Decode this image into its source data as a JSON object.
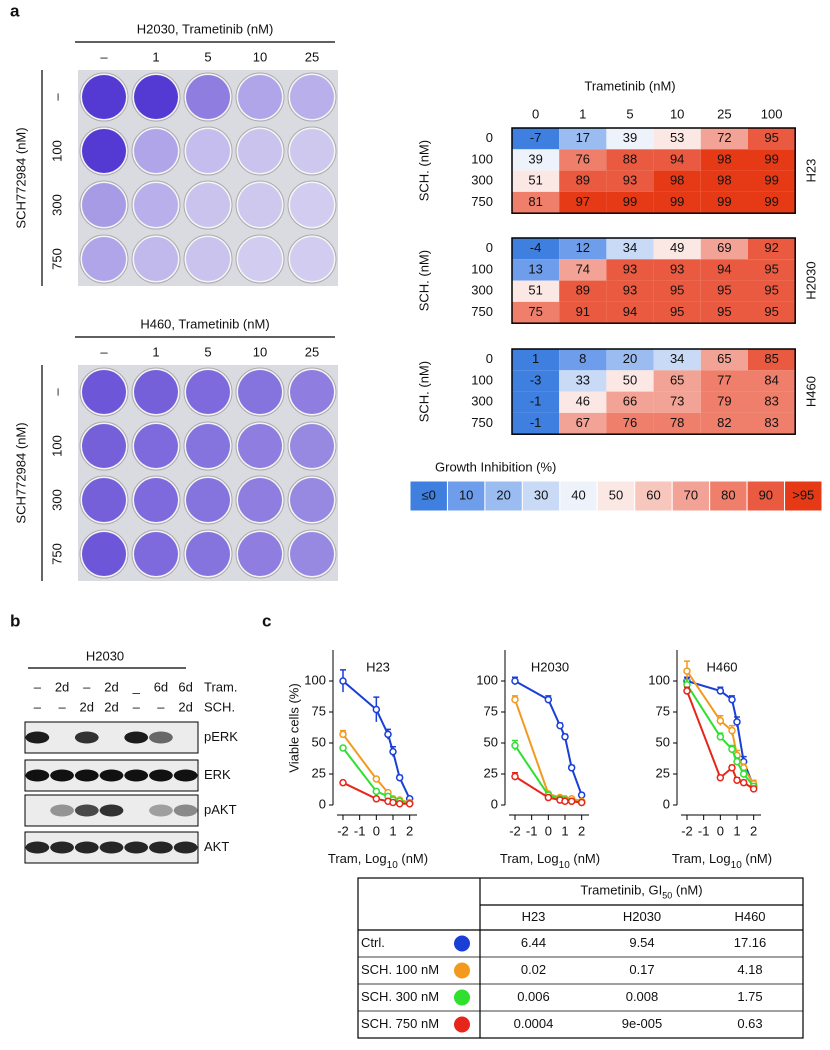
{
  "panel_labels": [
    "a",
    "b",
    "c"
  ],
  "plates": [
    {
      "title": "H2030, Trametinib (nM)",
      "columns": [
        "–",
        "1",
        "5",
        "10",
        "25"
      ],
      "rows": [
        "–",
        "100",
        "300",
        "750"
      ],
      "row_axis": "SCH772984 (nM)"
    },
    {
      "title": "H460, Trametinib (nM)",
      "columns": [
        "–",
        "1",
        "5",
        "10",
        "25"
      ],
      "rows": [
        "–",
        "100",
        "300",
        "750"
      ],
      "row_axis": "SCH772984 (nM)"
    }
  ],
  "heatmaps": {
    "title": "Trametinib (nM)",
    "columns": [
      "0",
      "1",
      "5",
      "10",
      "25",
      "100"
    ],
    "rows": [
      "0",
      "100",
      "300",
      "750"
    ],
    "row_axis": "SCH. (nM)",
    "panels": [
      {
        "name": "H23",
        "values": [
          [
            -7,
            17,
            39,
            53,
            72,
            95
          ],
          [
            39,
            76,
            88,
            94,
            98,
            99
          ],
          [
            51,
            89,
            93,
            98,
            98,
            99
          ],
          [
            81,
            97,
            99,
            99,
            99,
            99
          ]
        ]
      },
      {
        "name": "H2030",
        "values": [
          [
            -4,
            12,
            34,
            49,
            69,
            92
          ],
          [
            13,
            74,
            93,
            93,
            94,
            95
          ],
          [
            51,
            89,
            93,
            95,
            95,
            95
          ],
          [
            75,
            91,
            94,
            95,
            95,
            95
          ]
        ]
      },
      {
        "name": "H460",
        "values": [
          [
            1,
            8,
            20,
            34,
            65,
            85
          ],
          [
            -3,
            33,
            50,
            65,
            77,
            84
          ],
          [
            -1,
            46,
            66,
            73,
            79,
            83
          ],
          [
            -1,
            67,
            76,
            78,
            82,
            83
          ]
        ]
      }
    ],
    "legend": {
      "title": "Growth Inhibition (%)",
      "labels": [
        "≤0",
        "10",
        "20",
        "30",
        "40",
        "50",
        "60",
        "70",
        "80",
        "90",
        ">95"
      ],
      "colors": [
        "#3f7fe0",
        "#6d9deb",
        "#9bbcf1",
        "#c8daf6",
        "#eef3fb",
        "#fbe8e4",
        "#f7c6bd",
        "#f3a395",
        "#ef7e6b",
        "#ea5a40",
        "#e63a17"
      ]
    }
  },
  "blot": {
    "title": "H2030",
    "conditions": [
      {
        "name": "Tram.",
        "lanes": [
          "–",
          "2d",
          "–",
          "2d",
          "_",
          "6d",
          "6d"
        ]
      },
      {
        "name": "SCH.",
        "lanes": [
          "–",
          "–",
          "2d",
          "2d",
          "–",
          "–",
          "2d"
        ]
      }
    ],
    "bands": [
      "pERK",
      "ERK",
      "pAKT",
      "AKT"
    ]
  },
  "chart_data": [
    {
      "type": "line",
      "title": "H23",
      "ylabel": "Viable cells (%)",
      "xlabel": [
        "Tram, Log",
        "10",
        " (nM)"
      ],
      "x": [
        -2,
        0,
        0.7,
        1,
        1.4,
        2
      ],
      "xlim": [
        -2.6,
        2.2
      ],
      "xticks": [
        -2,
        -1,
        0,
        1,
        2
      ],
      "ylim": [
        0,
        125
      ],
      "yticks": [
        0,
        25,
        50,
        75,
        100
      ],
      "series": [
        {
          "name": "Ctrl.",
          "color": "#1a3fd6",
          "values": [
            100,
            77,
            57,
            43,
            22,
            5
          ],
          "errors": [
            9,
            10,
            4,
            4,
            2,
            1
          ]
        },
        {
          "name": "SCH. 100 nM",
          "color": "#f39a1e",
          "values": [
            57,
            21,
            10,
            5,
            4,
            2
          ],
          "errors": [
            3,
            1,
            1,
            1,
            1,
            1
          ]
        },
        {
          "name": "SCH. 300 nM",
          "color": "#2fe02f",
          "values": [
            46,
            11,
            7,
            4,
            3,
            1
          ]
        },
        {
          "name": "SCH. 750 nM",
          "color": "#e8251a",
          "values": [
            18,
            5,
            3,
            2,
            1,
            1
          ]
        }
      ]
    },
    {
      "type": "line",
      "title": "H2030",
      "xlabel": [
        "Tram, Log",
        "10",
        " (nM)"
      ],
      "x": [
        -2,
        0,
        0.7,
        1,
        1.4,
        2
      ],
      "xlim": [
        -2.6,
        2.2
      ],
      "xticks": [
        -2,
        -1,
        0,
        1,
        2
      ],
      "ylim": [
        0,
        125
      ],
      "yticks": [
        0,
        25,
        50,
        75,
        100
      ],
      "series": [
        {
          "name": "Ctrl.",
          "color": "#1a3fd6",
          "values": [
            100,
            85,
            64,
            55,
            30,
            8
          ],
          "errors": [
            3,
            3,
            2,
            2,
            2,
            1
          ]
        },
        {
          "name": "SCH. 100 nM",
          "color": "#f39a1e",
          "values": [
            85,
            9,
            6,
            5,
            5,
            3
          ],
          "errors": [
            3,
            1,
            1,
            1,
            1,
            1
          ]
        },
        {
          "name": "SCH. 300 nM",
          "color": "#2fe02f",
          "values": [
            48,
            8,
            5,
            4,
            3,
            2
          ],
          "errors": [
            4,
            1,
            1,
            1,
            1,
            1
          ]
        },
        {
          "name": "SCH. 750 nM",
          "color": "#e8251a",
          "values": [
            23,
            6,
            4,
            3,
            3,
            2
          ],
          "errors": [
            3,
            1,
            1,
            1,
            1,
            1
          ]
        }
      ]
    },
    {
      "type": "line",
      "title": "H460",
      "xlabel": [
        "Tram, Log",
        "10",
        " (nM)"
      ],
      "x": [
        -2,
        0,
        0.7,
        1,
        1.4,
        2
      ],
      "xlim": [
        -2.6,
        2.2
      ],
      "xticks": [
        -2,
        -1,
        0,
        1,
        2
      ],
      "ylim": [
        0,
        125
      ],
      "yticks": [
        0,
        25,
        50,
        75,
        100
      ],
      "series": [
        {
          "name": "Ctrl.",
          "color": "#1a3fd6",
          "values": [
            100,
            92,
            85,
            67,
            35,
            15
          ],
          "errors": [
            3,
            3,
            3,
            4,
            4,
            3
          ]
        },
        {
          "name": "SCH. 100 nM",
          "color": "#f39a1e",
          "values": [
            108,
            68,
            60,
            40,
            30,
            17
          ],
          "errors": [
            8,
            4,
            4,
            4,
            3,
            3
          ]
        },
        {
          "name": "SCH. 300 nM",
          "color": "#2fe02f",
          "values": [
            97,
            55,
            45,
            35,
            25,
            15
          ],
          "errors": [
            4,
            3,
            3,
            3,
            3,
            2
          ]
        },
        {
          "name": "SCH. 750 nM",
          "color": "#e8251a",
          "values": [
            92,
            22,
            30,
            20,
            18,
            13
          ],
          "errors": [
            3,
            2,
            2,
            2,
            2,
            2
          ]
        }
      ]
    }
  ],
  "table": {
    "title": [
      "Trametinib, GI",
      "50",
      " (nM)"
    ],
    "columns": [
      "H23",
      "H2030",
      "H460"
    ],
    "rows": [
      {
        "label": "Ctrl.",
        "values": [
          "6.44",
          "9.54",
          "17.16"
        ]
      },
      {
        "label": "SCH. 100 nM",
        "values": [
          "0.02",
          "0.17",
          "4.18"
        ]
      },
      {
        "label": "SCH. 300 nM",
        "values": [
          "0.006",
          "0.008",
          "1.75"
        ]
      },
      {
        "label": "SCH. 750 nM",
        "values": [
          "0.0004",
          "9e-005",
          "0.63"
        ]
      }
    ]
  }
}
